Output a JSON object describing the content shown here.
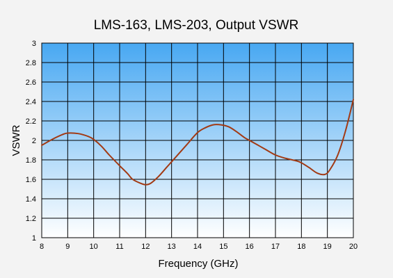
{
  "chart_data": {
    "type": "line",
    "title": "LMS-163, LMS-203, Output VSWR",
    "xlabel": "Frequency (GHz)",
    "ylabel": "VSWR",
    "xlim": [
      8,
      20
    ],
    "ylim": [
      1,
      3
    ],
    "x_ticks": [
      "8",
      "9",
      "10",
      "11",
      "12",
      "13",
      "14",
      "15",
      "16",
      "17",
      "18",
      "19",
      "20"
    ],
    "y_ticks": [
      "1",
      "1.2",
      "1.4",
      "1.6",
      "1.8",
      "2",
      "2.2",
      "2.4",
      "2.6",
      "2.8",
      "3"
    ],
    "grid": true,
    "legend": "none",
    "plot_background": {
      "top": "#48a8f2",
      "bottom": "#ffffff"
    },
    "series": [
      {
        "color": "#a23a14",
        "x": [
          8.0,
          8.4,
          8.8,
          9.0,
          9.4,
          9.8,
          10.0,
          10.3,
          10.6,
          11.0,
          11.3,
          11.5,
          11.8,
          12.0,
          12.2,
          12.5,
          12.8,
          13.0,
          13.3,
          13.6,
          14.0,
          14.3,
          14.6,
          14.9,
          15.2,
          15.5,
          15.8,
          16.0,
          16.3,
          16.6,
          17.0,
          17.4,
          17.8,
          18.0,
          18.3,
          18.6,
          18.9,
          19.1,
          19.4,
          19.7,
          20.0
        ],
        "y": [
          1.95,
          2.01,
          2.06,
          2.075,
          2.07,
          2.04,
          2.01,
          1.94,
          1.85,
          1.74,
          1.66,
          1.6,
          1.56,
          1.545,
          1.56,
          1.63,
          1.72,
          1.78,
          1.87,
          1.96,
          2.08,
          2.13,
          2.16,
          2.16,
          2.14,
          2.09,
          2.03,
          2.0,
          1.955,
          1.91,
          1.85,
          1.815,
          1.79,
          1.77,
          1.72,
          1.665,
          1.65,
          1.7,
          1.85,
          2.1,
          2.42
        ]
      }
    ]
  }
}
